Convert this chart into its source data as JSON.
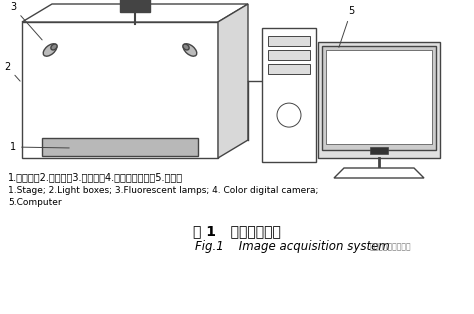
{
  "title_cn": "图 1   图像采集系统",
  "title_en": "Fig.1    Image acquisition system",
  "caption_cn": "1.载物台；2.光照箱；3.荧光灯；4.彩色数码相机；5.计算机",
  "caption_en1": "1.Stage; 2.Light boxes; 3.Fluorescent lamps; 4. Color digital camera;",
  "caption_en2": "5.Computer",
  "bg_color": "#ffffff",
  "line_color": "#444444",
  "stage_fill": "#b8b8b8",
  "camera_fill": "#555555",
  "lw": 1.0
}
